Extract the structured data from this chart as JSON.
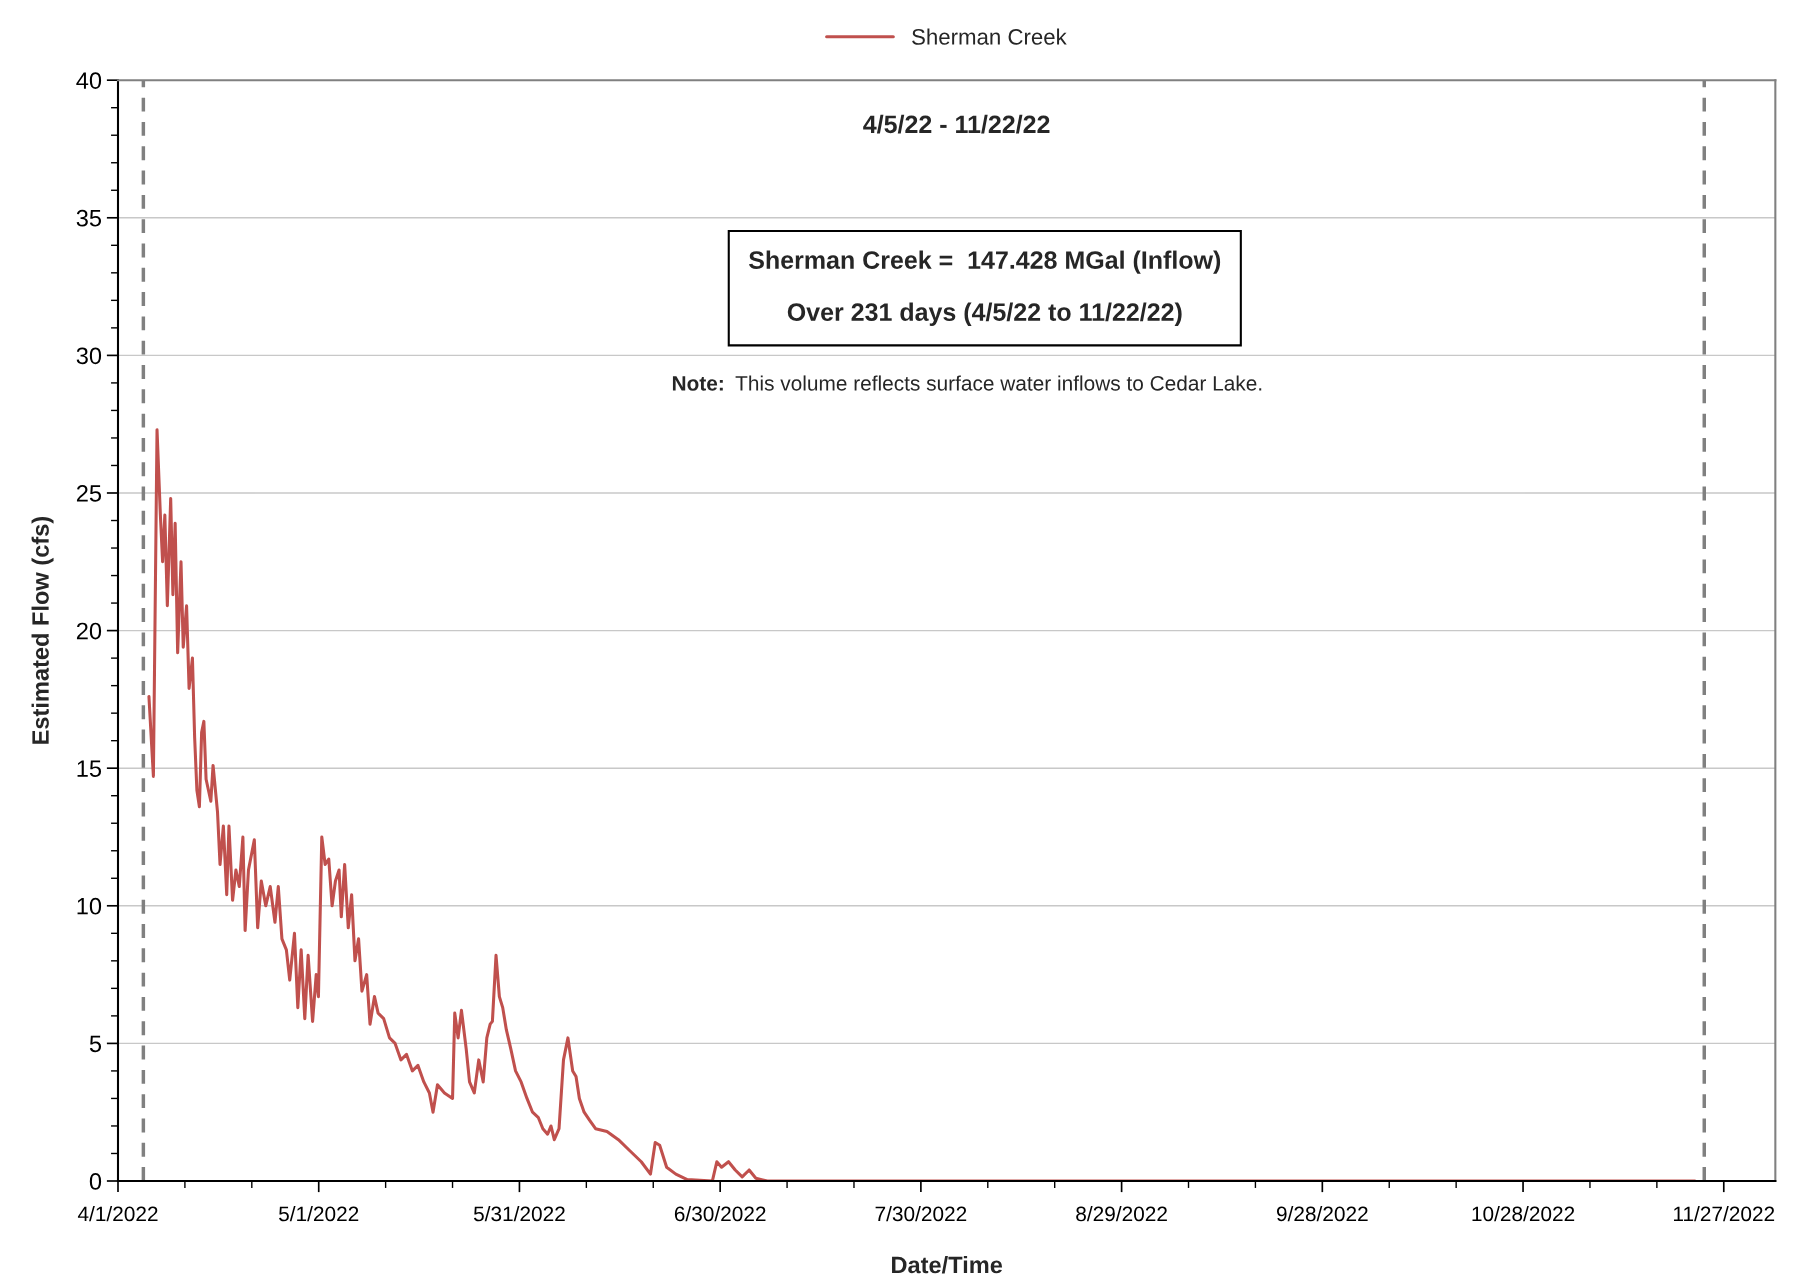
{
  "chart_data": {
    "type": "line",
    "xlabel": "Date/Time",
    "ylabel": "Estimated Flow (cfs)",
    "xlim": [
      "2022-04-01",
      "2022-12-04T17:00"
    ],
    "xticks": [
      {
        "value": "2022-04-01",
        "label": "4/1/2022"
      },
      {
        "value": "2022-05-01",
        "label": "5/1/2022"
      },
      {
        "value": "2022-05-31",
        "label": "5/31/2022"
      },
      {
        "value": "2022-06-30",
        "label": "6/30/2022"
      },
      {
        "value": "2022-07-30",
        "label": "7/30/2022"
      },
      {
        "value": "2022-08-29",
        "label": "8/29/2022"
      },
      {
        "value": "2022-09-28",
        "label": "9/28/2022"
      },
      {
        "value": "2022-10-28",
        "label": "10/28/2022"
      },
      {
        "value": "2022-11-27",
        "label": "11/27/2022"
      }
    ],
    "ylim": [
      0,
      40
    ],
    "yticks": [
      0,
      5,
      10,
      15,
      20,
      25,
      30,
      35,
      40
    ],
    "grid": "y",
    "legend": "top",
    "marker": "none",
    "line_style": "solid",
    "ref_lines": [
      {
        "axis": "x",
        "value": "2022-04-04T19:00",
        "color": "#808080",
        "line_style": "dashed"
      },
      {
        "axis": "x",
        "value": "2022-11-24T02:00",
        "color": "#808080",
        "line_style": "dashed"
      }
    ],
    "annotations": [
      "4/5/22 - 11/22/22",
      "Sherman Creek =  147.428 MGal (Inflow)",
      "Over 231 days (4/5/22 to 11/22/22)",
      "Note:",
      "This volume reflects surface water inflows to Cedar Lake."
    ],
    "series": [
      {
        "name": "Sherman Creek",
        "color": "#c0504d",
        "x": [
          "2022-04-05T15:00",
          "2022-04-06T07:00",
          "2022-04-06T20:00",
          "2022-04-07T08:00",
          "2022-04-07T16:00",
          "2022-04-08T00:00",
          "2022-04-08T09:00",
          "2022-04-08T21:00",
          "2022-04-09T05:00",
          "2022-04-09T13:00",
          "2022-04-09T22:00",
          "2022-04-10T10:00",
          "2022-04-10T18:00",
          "2022-04-11T06:00",
          "2022-04-11T15:00",
          "2022-04-12T03:00",
          "2022-04-12T11:00",
          "2022-04-12T19:00",
          "2022-04-13T04:00",
          "2022-04-13T12:00",
          "2022-04-13T20:00",
          "2022-04-14T04:00",
          "2022-04-14T21:00",
          "2022-04-15T05:00",
          "2022-04-15T21:00",
          "2022-04-16T06:00",
          "2022-04-16T18:00",
          "2022-04-17T06:00",
          "2022-04-17T14:00",
          "2022-04-18T03:00",
          "2022-04-18T15:00",
          "2022-04-19T03:00",
          "2022-04-19T16:00",
          "2022-04-20T00:00",
          "2022-04-20T12:00",
          "2022-04-21T09:00",
          "2022-04-21T21:00",
          "2022-04-22T10:00",
          "2022-04-23T02:00",
          "2022-04-23T18:00",
          "2022-04-24T11:00",
          "2022-04-24T23:00",
          "2022-04-25T12:00",
          "2022-04-26T04:00",
          "2022-04-26T16:00",
          "2022-04-27T09:00",
          "2022-04-27T21:00",
          "2022-04-28T09:00",
          "2022-04-28T22:00",
          "2022-04-29T10:00",
          "2022-04-30T02:00",
          "2022-04-30T15:00",
          "2022-04-30T23:00",
          "2022-05-01T11:00",
          "2022-05-01T23:00",
          "2022-05-02T12:00",
          "2022-05-03T00:00",
          "2022-05-03T12:00",
          "2022-05-04T01:00",
          "2022-05-04T09:00",
          "2022-05-04T21:00",
          "2022-05-05T10:00",
          "2022-05-05T22:00",
          "2022-05-06T10:00",
          "2022-05-06T23:00",
          "2022-05-07T11:00",
          "2022-05-08T04:00",
          "2022-05-08T16:00",
          "2022-05-09T08:00",
          "2022-05-09T21:00",
          "2022-05-10T17:00",
          "2022-05-11T14:00",
          "2022-05-12T10:00",
          "2022-05-13T07:00",
          "2022-05-14T03:00",
          "2022-05-15T00:00",
          "2022-05-15T20:00",
          "2022-05-16T17:00",
          "2022-05-17T13:00",
          "2022-05-18T02:00",
          "2022-05-18T18:00",
          "2022-05-19T19:00",
          "2022-05-21T00:00",
          "2022-05-21T08:00",
          "2022-05-21T20:00",
          "2022-05-22T08:00",
          "2022-05-23T01:00",
          "2022-05-23T13:00",
          "2022-05-24T06:00",
          "2022-05-24T22:00",
          "2022-05-25T14:00",
          "2022-05-26T03:00",
          "2022-05-26T15:00",
          "2022-05-26T23:00",
          "2022-05-27T12:00",
          "2022-05-28T00:00",
          "2022-05-28T12:00",
          "2022-05-29T01:00",
          "2022-05-29T17:00",
          "2022-05-30T10:00",
          "2022-05-31T06:00",
          "2022-06-01T03:00",
          "2022-06-01T23:00",
          "2022-06-02T20:00",
          "2022-06-03T12:00",
          "2022-06-04T05:00",
          "2022-06-04T17:00",
          "2022-06-05T05:00",
          "2022-06-05T22:00",
          "2022-06-06T14:00",
          "2022-06-07T06:00",
          "2022-06-07T23:00",
          "2022-06-08T11:00",
          "2022-06-08T23:00",
          "2022-06-09T16:00",
          "2022-06-10T12:00",
          "2022-06-11T09:00",
          "2022-06-13T02:00",
          "2022-06-14T19:00",
          "2022-06-16T12:00",
          "2022-06-18T05:00",
          "2022-06-19T14:00",
          "2022-06-20T07:00",
          "2022-06-20T23:00",
          "2022-06-22T00:00",
          "2022-06-23T09:00",
          "2022-06-25T02:00",
          "2022-06-28T20:00",
          "2022-06-29T12:00",
          "2022-06-30T05:00",
          "2022-07-01T06:00",
          "2022-07-02T06:00",
          "2022-07-03T07:00",
          "2022-07-04T08:00",
          "2022-07-05T08:00",
          "2022-07-07T01:00",
          "2022-11-22T17:00"
        ],
        "values": [
          17.6,
          14.7,
          27.3,
          24.2,
          22.5,
          24.2,
          20.9,
          24.8,
          21.3,
          23.9,
          19.2,
          22.5,
          19.4,
          20.9,
          17.9,
          19.0,
          16.1,
          14.2,
          13.6,
          16.3,
          16.7,
          14.6,
          13.8,
          15.1,
          13.4,
          11.5,
          12.9,
          10.4,
          12.9,
          10.2,
          11.3,
          10.7,
          12.5,
          9.1,
          11.3,
          12.4,
          9.2,
          10.9,
          10.0,
          10.7,
          9.4,
          10.7,
          8.8,
          8.4,
          7.3,
          9.0,
          6.3,
          8.4,
          5.9,
          8.2,
          5.8,
          7.5,
          6.7,
          12.5,
          11.5,
          11.7,
          10.0,
          10.9,
          11.3,
          9.6,
          11.5,
          9.2,
          10.4,
          8.0,
          8.8,
          6.9,
          7.5,
          5.7,
          6.7,
          6.1,
          5.9,
          5.2,
          5.0,
          4.4,
          4.6,
          4.0,
          4.2,
          3.6,
          3.2,
          2.5,
          3.5,
          3.2,
          3.0,
          6.1,
          5.2,
          6.2,
          4.8,
          3.6,
          3.2,
          4.4,
          3.6,
          5.2,
          5.7,
          5.8,
          8.2,
          6.7,
          6.3,
          5.5,
          4.8,
          4.0,
          3.6,
          3.0,
          2.5,
          2.3,
          1.9,
          1.7,
          2.0,
          1.5,
          1.9,
          4.4,
          5.2,
          4.0,
          3.8,
          3.0,
          2.5,
          2.2,
          1.9,
          1.8,
          1.5,
          1.1,
          0.7,
          0.25,
          1.4,
          1.3,
          0.5,
          0.25,
          0.05,
          0,
          0.7,
          0.5,
          0.7,
          0.4,
          0.15,
          0.4,
          0.1,
          0,
          0
        ]
      }
    ]
  }
}
